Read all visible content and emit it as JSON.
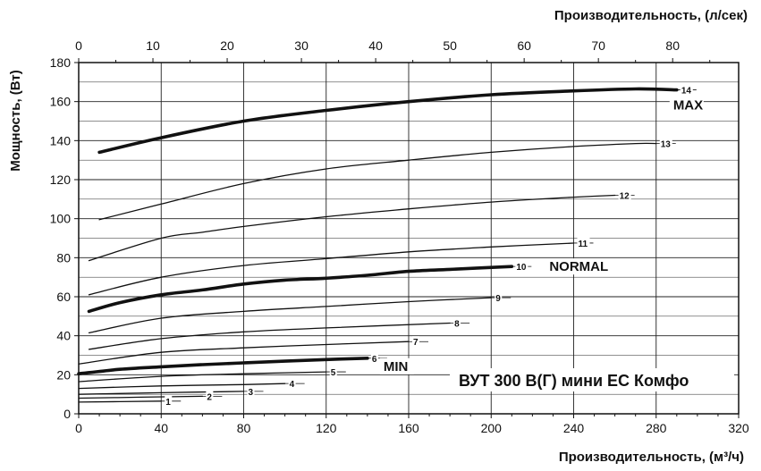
{
  "chart_data": {
    "type": "line",
    "title": "ВУТ 300 В(Г) мини ЕС Комфо",
    "xlabel": "Производительность, (м³/ч)",
    "xlabel_top": "Производительность, (л/сек)",
    "ylabel": "Мощность, (Вт)",
    "xlim": [
      0,
      320
    ],
    "ylim": [
      0,
      180
    ],
    "x2lim": [
      0,
      88.89
    ],
    "x_ticks": [
      "0",
      "40",
      "80",
      "120",
      "160",
      "200",
      "240",
      "280",
      "320"
    ],
    "x_tick_values": [
      0,
      40,
      80,
      120,
      160,
      200,
      240,
      280,
      320
    ],
    "x2_ticks": [
      "0",
      "10",
      "20",
      "30",
      "40",
      "50",
      "60",
      "70",
      "80"
    ],
    "x2_tick_values": [
      0,
      10,
      20,
      30,
      40,
      50,
      60,
      70,
      80
    ],
    "y_ticks": [
      "0",
      "20",
      "40",
      "60",
      "80",
      "100",
      "120",
      "140",
      "160",
      "180"
    ],
    "y_tick_values": [
      0,
      20,
      40,
      60,
      80,
      100,
      120,
      140,
      160,
      180
    ],
    "grid": true,
    "mode_labels": [
      {
        "text": "MAX",
        "series_index": 13
      },
      {
        "text": "NORMAL",
        "series_index": 9
      },
      {
        "text": "MIN",
        "series_index": 5
      }
    ],
    "series": [
      {
        "name": "1",
        "bold": false,
        "x": [
          0,
          40
        ],
        "y": [
          6,
          6.5
        ]
      },
      {
        "name": "2",
        "bold": false,
        "x": [
          0,
          30,
          60
        ],
        "y": [
          8,
          8.5,
          9
        ]
      },
      {
        "name": "3",
        "bold": false,
        "x": [
          0,
          40,
          80
        ],
        "y": [
          10,
          10.8,
          11.5
        ]
      },
      {
        "name": "4",
        "bold": false,
        "x": [
          0,
          40,
          80,
          100
        ],
        "y": [
          13,
          14.3,
          15,
          15.5
        ]
      },
      {
        "name": "5",
        "bold": false,
        "x": [
          0,
          40,
          80,
          120
        ],
        "y": [
          16.5,
          19.2,
          20.5,
          21.5
        ]
      },
      {
        "name": "6",
        "bold": true,
        "x": [
          0,
          20,
          40,
          60,
          80,
          100,
          120,
          140
        ],
        "y": [
          20.5,
          22.8,
          24.1,
          25.2,
          26.1,
          27,
          27.8,
          28.5
        ]
      },
      {
        "name": "7",
        "bold": false,
        "x": [
          0,
          40,
          80,
          120,
          160
        ],
        "y": [
          25.5,
          31.5,
          33.8,
          35.5,
          37
        ]
      },
      {
        "name": "8",
        "bold": false,
        "x": [
          5,
          40,
          80,
          120,
          180
        ],
        "y": [
          33,
          38.5,
          42,
          44,
          46.5
        ]
      },
      {
        "name": "9",
        "bold": false,
        "x": [
          5,
          40,
          80,
          120,
          160,
          200
        ],
        "y": [
          41.5,
          49,
          52.5,
          55,
          57.5,
          59.5
        ]
      },
      {
        "name": "10",
        "bold": true,
        "x": [
          5,
          20,
          40,
          60,
          80,
          100,
          120,
          140,
          160,
          180,
          210
        ],
        "y": [
          52.5,
          57,
          61,
          63.5,
          66.5,
          68.5,
          69.5,
          71,
          73,
          74,
          75.5
        ]
      },
      {
        "name": "11",
        "bold": false,
        "x": [
          5,
          40,
          80,
          120,
          160,
          200,
          240
        ],
        "y": [
          61,
          70,
          76,
          79.5,
          83,
          85.5,
          87.5
        ]
      },
      {
        "name": "12",
        "bold": false,
        "x": [
          5,
          40,
          60,
          80,
          120,
          160,
          200,
          240,
          260
        ],
        "y": [
          78.5,
          90,
          93,
          96,
          101,
          105,
          108.5,
          111,
          112
        ]
      },
      {
        "name": "13",
        "bold": false,
        "x": [
          10,
          40,
          80,
          120,
          160,
          200,
          240,
          270,
          280
        ],
        "y": [
          99.5,
          107.5,
          118,
          125.5,
          130,
          134,
          137,
          138.5,
          138.5
        ]
      },
      {
        "name": "14",
        "bold": true,
        "x": [
          10,
          40,
          80,
          120,
          160,
          200,
          240,
          270,
          290
        ],
        "y": [
          134,
          141.5,
          150,
          155.5,
          160,
          163.5,
          165.5,
          166.5,
          166
        ]
      }
    ]
  }
}
